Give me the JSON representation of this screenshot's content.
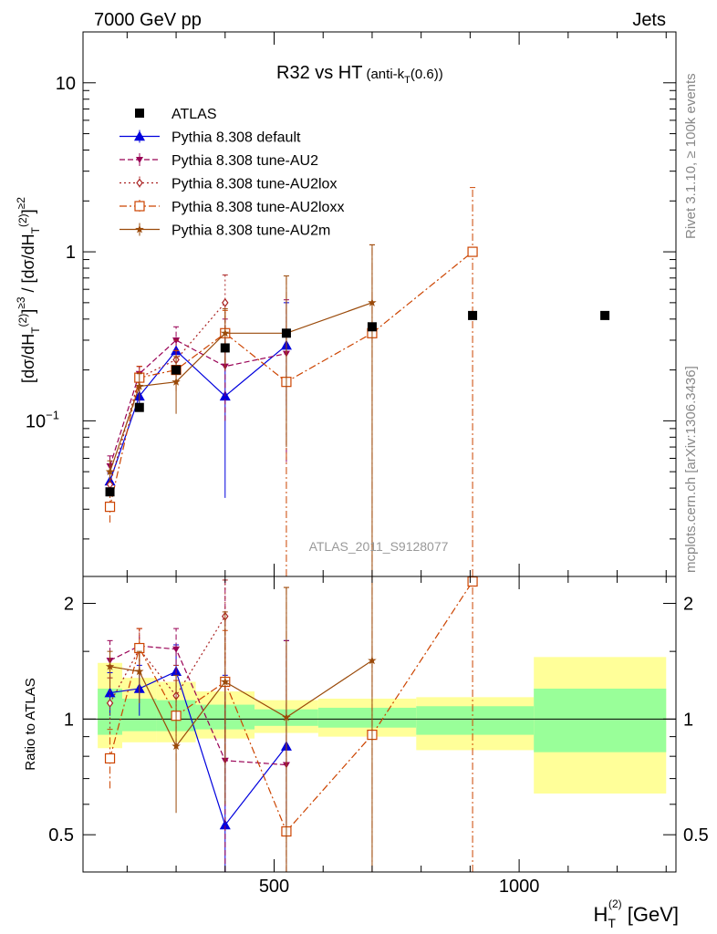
{
  "header": {
    "left": "7000 GeV pp",
    "right": "Jets"
  },
  "side_labels": {
    "rivet": "Rivet 3.1.10, ≥ 100k events",
    "mcplots": "mcplots.cern.ch [arXiv:1306.3436]"
  },
  "chart_data": [
    {
      "type": "line",
      "title_main": "R32 vs HT",
      "title_sub_pre": "(anti-k",
      "title_sub_T": "T",
      "title_sub_post": "(0.6))",
      "watermark": "ATLAS_2011_S9128077",
      "ylabel_parts": [
        "[dσ/dH",
        "T",
        "(2)",
        "]",
        "≥3",
        " / [dσ/dH",
        "T",
        "(2)",
        "]",
        "≥2"
      ],
      "xlim": [
        110,
        1320
      ],
      "ylim": [
        0.012,
        20
      ],
      "yscale": "log",
      "yticks": [
        {
          "v": 0.1,
          "base": "10",
          "exp": "−1"
        },
        {
          "v": 1,
          "base": "1",
          "exp": ""
        },
        {
          "v": 10,
          "base": "10",
          "exp": ""
        }
      ],
      "legend_position": "top-left",
      "series": [
        {
          "name": "ATLAS",
          "color": "#000000",
          "marker": "square-filled",
          "line": "none",
          "x": [
            165,
            225,
            300,
            400,
            525,
            700,
            905,
            1175
          ],
          "y": [
            0.038,
            0.12,
            0.2,
            0.27,
            0.33,
            0.36,
            0.42,
            0.42
          ]
        },
        {
          "name": "Pythia 8.308 default",
          "color": "#0000dd",
          "marker": "triangle-up",
          "line": "solid",
          "x": [
            165,
            225,
            300,
            400,
            525
          ],
          "y": [
            0.044,
            0.14,
            0.26,
            0.14,
            0.28
          ],
          "err": [
            [
              0.039,
              0.049
            ],
            [
              0.12,
              0.16
            ],
            [
              0.22,
              0.3
            ],
            [
              0.035,
              0.35
            ],
            [
              0.12,
              0.5
            ]
          ]
        },
        {
          "name": "Pythia 8.308 tune-AU2",
          "color": "#990055",
          "marker": "triangle-down",
          "line": "dashed",
          "x": [
            165,
            225,
            300,
            400,
            525
          ],
          "y": [
            0.054,
            0.19,
            0.3,
            0.21,
            0.25
          ],
          "err": [
            [
              0.046,
              0.062
            ],
            [
              0.16,
              0.21
            ],
            [
              0.25,
              0.36
            ],
            [
              0.1,
              0.4
            ],
            [
              0.057,
              0.52
            ]
          ]
        },
        {
          "name": "Pythia 8.308 tune-AU2lox",
          "color": "#aa2222",
          "marker": "diamond-open",
          "line": "dotted",
          "x": [
            165,
            225,
            300,
            400
          ],
          "y": [
            0.042,
            0.18,
            0.23,
            0.5
          ],
          "err": [
            [
              0.035,
              0.05
            ],
            [
              0.15,
              0.21
            ],
            [
              0.18,
              0.3
            ],
            [
              0.28,
              0.73
            ]
          ]
        },
        {
          "name": "Pythia 8.308 tune-AU2loxx",
          "color": "#cc4400",
          "marker": "square-open",
          "line": "dashdot",
          "x": [
            165,
            225,
            300,
            400,
            525,
            700,
            905
          ],
          "y": [
            0.031,
            0.18,
            0.2,
            0.33,
            0.17,
            0.33,
            1.0
          ],
          "err": [
            [
              0.025,
              0.038
            ],
            [
              0.15,
              0.21
            ],
            [
              0.15,
              0.26
            ],
            [
              0.22,
              0.45
            ],
            [
              0.012,
              0.72
            ],
            [
              0.012,
              1.1
            ],
            [
              0.012,
              2.4
            ]
          ]
        },
        {
          "name": "Pythia 8.308 tune-AU2m",
          "color": "#9a4a0a",
          "marker": "star",
          "line": "solid",
          "x": [
            165,
            225,
            300,
            400,
            525,
            700
          ],
          "y": [
            0.05,
            0.16,
            0.17,
            0.33,
            0.33,
            0.5
          ],
          "err": [
            [
              0.043,
              0.058
            ],
            [
              0.13,
              0.19
            ],
            [
              0.11,
              0.24
            ],
            [
              0.2,
              0.46
            ],
            [
              0.07,
              0.72
            ],
            [
              0.012,
              1.1
            ]
          ]
        }
      ]
    },
    {
      "type": "line",
      "ylabel": "Ratio to ATLAS",
      "xlabel_base": "H",
      "xlabel_sub": "T",
      "xlabel_sup": "(2)",
      "xlabel_unit": " [GeV]",
      "xlim": [
        110,
        1320
      ],
      "ylim": [
        0.4,
        2.35
      ],
      "yscale": "log",
      "yticks": [
        0.5,
        1,
        2
      ],
      "xticks": [
        500,
        1000
      ],
      "bands": {
        "x_edges": [
          140,
          190,
          260,
          340,
          460,
          590,
          790,
          1030,
          1300
        ],
        "yellow_lo": [
          0.84,
          0.87,
          0.87,
          0.89,
          0.92,
          0.9,
          0.83,
          0.64
        ],
        "yellow_hi": [
          1.4,
          1.28,
          1.25,
          1.18,
          1.12,
          1.13,
          1.14,
          1.45
        ],
        "green_lo": [
          0.91,
          0.93,
          0.93,
          0.94,
          0.96,
          0.95,
          0.91,
          0.82
        ],
        "green_hi": [
          1.2,
          1.13,
          1.12,
          1.09,
          1.06,
          1.07,
          1.08,
          1.2
        ]
      },
      "ratio_series": [
        {
          "name": "Pythia 8.308 default",
          "color": "#0000dd",
          "marker": "triangle-up",
          "line": "solid",
          "x": [
            165,
            225,
            300,
            400,
            525
          ],
          "y": [
            1.17,
            1.2,
            1.33,
            0.53,
            0.85
          ],
          "err": [
            [
              1.02,
              1.32
            ],
            [
              1.02,
              1.38
            ],
            [
              1.1,
              1.56
            ],
            [
              0.3,
              1.3
            ],
            [
              0.5,
              1.6
            ]
          ]
        },
        {
          "name": "Pythia 8.308 tune-AU2",
          "color": "#990055",
          "marker": "triangle-down",
          "line": "dashed",
          "x": [
            165,
            225,
            300,
            400,
            525
          ],
          "y": [
            1.42,
            1.55,
            1.52,
            0.78,
            0.76
          ],
          "err": [
            [
              1.28,
              1.6
            ],
            [
              1.32,
              1.72
            ],
            [
              1.32,
              1.72
            ],
            [
              0.3,
              2.35
            ],
            [
              0.3,
              1.6
            ]
          ]
        },
        {
          "name": "Pythia 8.308 tune-AU2lox",
          "color": "#aa2222",
          "marker": "diamond-open",
          "line": "dotted",
          "x": [
            165,
            225,
            300,
            400
          ],
          "y": [
            1.1,
            1.52,
            1.15,
            1.85
          ],
          "err": [
            [
              0.92,
              1.28
            ],
            [
              1.3,
              1.72
            ],
            [
              0.92,
              1.38
            ],
            [
              1.4,
              2.3
            ]
          ]
        },
        {
          "name": "Pythia 8.308 tune-AU2loxx",
          "color": "#cc4400",
          "marker": "square-open",
          "line": "dashdot",
          "x": [
            165,
            225,
            300,
            400,
            525,
            700,
            905
          ],
          "y": [
            0.79,
            1.53,
            1.02,
            1.25,
            0.51,
            0.91,
            2.28
          ],
          "err": [
            [
              0.66,
              0.94
            ],
            [
              1.3,
              1.72
            ],
            [
              0.78,
              1.26
            ],
            [
              0.82,
              1.7
            ],
            [
              0.4,
              2.2
            ],
            [
              0.4,
              2.35
            ],
            [
              0.4,
              2.35
            ]
          ]
        },
        {
          "name": "Pythia 8.308 tune-AU2m",
          "color": "#9a4a0a",
          "marker": "star",
          "line": "solid",
          "x": [
            165,
            225,
            300,
            400,
            525,
            700
          ],
          "y": [
            1.37,
            1.33,
            0.85,
            1.25,
            1.01,
            1.42
          ],
          "err": [
            [
              1.2,
              1.5
            ],
            [
              1.1,
              1.5
            ],
            [
              0.57,
              1.3
            ],
            [
              0.6,
              1.9
            ],
            [
              0.4,
              2.2
            ],
            [
              0.4,
              2.35
            ]
          ]
        }
      ]
    }
  ]
}
